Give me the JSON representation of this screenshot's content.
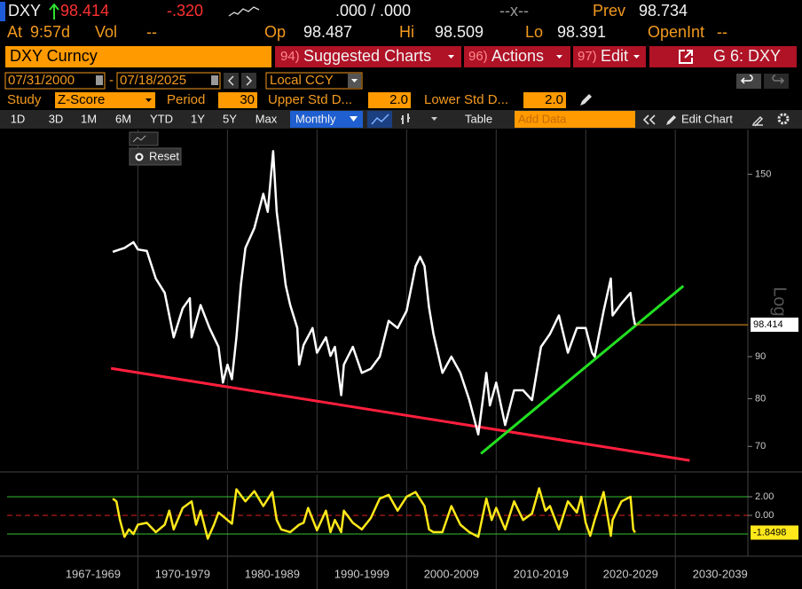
{
  "header": {
    "ticker": "DXY",
    "last": 98.414,
    "change": "-.320",
    "bidask": ".000 / .000",
    "size": "--x--",
    "prev_label": "Prev",
    "prev": 98.734,
    "time_label": "At",
    "time": "9:57d",
    "vol_label": "Vol",
    "vol": "--",
    "open_label": "Op",
    "open": 98.487,
    "high_label": "Hi",
    "high": 98.509,
    "low_label": "Lo",
    "low": 98.391,
    "oi_label": "OpenInt",
    "oi": "--"
  },
  "toolbar": {
    "security": "DXY Curncy",
    "menus": [
      {
        "num": "94)",
        "label": "Suggested Charts"
      },
      {
        "num": "96)",
        "label": "Actions"
      },
      {
        "num": "97)",
        "label": "Edit"
      }
    ],
    "page": "G 6: DXY",
    "start_date": "07/31/2000",
    "date_sep": "-",
    "end_date": "07/18/2025",
    "currency": "Local CCY",
    "study_label": "Study",
    "study": "Z-Score",
    "period_label": "Period",
    "period": 30,
    "upper_label": "Upper Std D...",
    "upper": "2.0",
    "lower_label": "Lower Std D...",
    "lower": "2.0",
    "tabs": [
      "1D",
      "3D",
      "1M",
      "6M",
      "YTD",
      "1Y",
      "5Y",
      "Max"
    ],
    "frequency": "Monthly",
    "table": "Table",
    "add_data": "Add Data",
    "edit_chart": "Edit Chart",
    "reset": "Reset"
  },
  "chart_data": [
    {
      "type": "line",
      "log_scale": true,
      "scale_label": "Log",
      "xlim": [
        1955.4,
        2038.1
      ],
      "xticks": [
        1970,
        1980,
        1990,
        2000,
        2010,
        2020,
        2030
      ],
      "ylim": [
        65.5,
        170
      ],
      "yticks": [
        70,
        80,
        90,
        150
      ],
      "last_line_color": "#f39a1e",
      "series": [
        {
          "name": "DXY",
          "color": "#ffffff",
          "x": [
            1967.2,
            1968,
            1968.5,
            1969.5,
            1970,
            1971,
            1972,
            1973,
            1974,
            1975,
            1975.8,
            1976,
            1977,
            1978,
            1979,
            1979.5,
            1980,
            1980.5,
            1981,
            1981.5,
            1982,
            1983,
            1984,
            1984.5,
            1985.1,
            1985.5,
            1986,
            1986.5,
            1987,
            1987.8,
            1988,
            1988.5,
            1989.5,
            1990,
            1991,
            1991.5,
            1992,
            1992.7,
            1993,
            1994,
            1995,
            1996,
            1997,
            1998,
            1999,
            2000,
            2001,
            2001.5,
            2002,
            2002.5,
            2003,
            2004,
            2005,
            2006,
            2007,
            2008,
            2008.9,
            2009.3,
            2010,
            2011,
            2012,
            2013,
            2014,
            2015,
            2016,
            2017,
            2018,
            2019,
            2020,
            2020.7,
            2021,
            2022,
            2022.8,
            2023,
            2024,
            2025,
            2025.3,
            2025.5
          ],
          "values": [
            120.7,
            121.5,
            122,
            124,
            121.5,
            121,
            112,
            107.6,
            95,
            103,
            106,
            95,
            104,
            97.5,
            92.5,
            83.7,
            88,
            84.5,
            95,
            110,
            122,
            129,
            142,
            135,
            160,
            135,
            122,
            110,
            104,
            97.5,
            88,
            93,
            97.5,
            91,
            95,
            90.2,
            92.5,
            80.8,
            88,
            92.5,
            86,
            87,
            90,
            99.5,
            97.5,
            102.3,
            115.9,
            119,
            116,
            103.3,
            95.9,
            86,
            90,
            86,
            79.7,
            72.4,
            86,
            78.5,
            83.7,
            74.3,
            81.9,
            81.9,
            79.7,
            92.5,
            95.9,
            101,
            91,
            97.5,
            97.5,
            91,
            90,
            102.3,
            112,
            101,
            104.5,
            107.6,
            101,
            98.414
          ]
        }
      ],
      "trendlines": [
        {
          "color": "#ff1f3d",
          "x": [
            1967.0,
            2031.6
          ],
          "y": [
            87.1,
            67.3
          ]
        },
        {
          "color": "#22e022",
          "x": [
            2008.3,
            2030.9
          ],
          "y": [
            68.6,
            109.7
          ]
        }
      ]
    },
    {
      "type": "line",
      "xlim": [
        1955.4,
        2038.1
      ],
      "xticks": [
        1970,
        1980,
        1990,
        2000,
        2010,
        2020,
        2030
      ],
      "period_labels": [
        "1967-1969",
        "1970-1979",
        "1980-1989",
        "1990-1999",
        "2000-2009",
        "2010-2019",
        "2020-2029",
        "2030-2039"
      ],
      "ylim": [
        -4.19,
        4.38
      ],
      "yticks": [
        {
          "value": 2,
          "label": "2.00"
        },
        {
          "value": 0,
          "label": "0.00"
        }
      ],
      "bands": [
        2,
        -2
      ],
      "band_color": "#2fbf2f",
      "zero_line_color": "#e02020",
      "series": [
        {
          "name": "Z-Score",
          "color": "#ffe81a",
          "x": [
            1967.2,
            1967.6,
            1968,
            1968.5,
            1969,
            1969.5,
            1970,
            1971,
            1972,
            1973,
            1973.5,
            1974,
            1975,
            1976,
            1976.5,
            1977,
            1977.8,
            1978.5,
            1979,
            1980,
            1980.5,
            1981,
            1982,
            1983,
            1984,
            1985,
            1985.5,
            1986,
            1987,
            1988,
            1988.5,
            1989,
            1990,
            1991,
            1991.5,
            1992,
            1992.7,
            1993,
            1994,
            1995,
            1996,
            1997,
            1998,
            1999,
            2000,
            2001,
            2002,
            2002.5,
            2003,
            2004,
            2005,
            2006,
            2007,
            2008,
            2008.9,
            2009.5,
            2010,
            2011,
            2012,
            2013,
            2014,
            2014.8,
            2015.5,
            2016,
            2017,
            2018,
            2019,
            2019.5,
            2020,
            2020.5,
            2021,
            2022,
            2022.8,
            2023,
            2024,
            2025,
            2025.3,
            2025.5
          ],
          "values": [
            1.8,
            1.5,
            -0.5,
            -2.3,
            -1.5,
            -2.0,
            -1.0,
            -0.8,
            -1.8,
            -1.0,
            0.5,
            -1.5,
            0.8,
            1.5,
            -1.0,
            0.5,
            -2.5,
            -1.0,
            0.3,
            -0.5,
            -0.9,
            2.8,
            1.5,
            2.6,
            1.0,
            2.5,
            -0.5,
            -1.5,
            -1.8,
            -1.0,
            -0.8,
            0.8,
            -1.6,
            0.5,
            -1.8,
            -0.5,
            -1.8,
            0.5,
            -0.8,
            -1.5,
            -0.3,
            1.8,
            2.2,
            0.5,
            2.0,
            2.5,
            1.0,
            -1.5,
            -1.8,
            -1.8,
            1.0,
            -1.0,
            -1.8,
            -2.3,
            1.8,
            -0.5,
            0.8,
            -1.5,
            1.5,
            -0.5,
            0.2,
            2.9,
            0.5,
            1.0,
            -1.5,
            1.5,
            0.3,
            2.0,
            -0.8,
            -2.2,
            -0.5,
            2.5,
            -2.2,
            -0.5,
            1.5,
            2.0,
            -1.5,
            -1.8498
          ]
        }
      ]
    }
  ]
}
